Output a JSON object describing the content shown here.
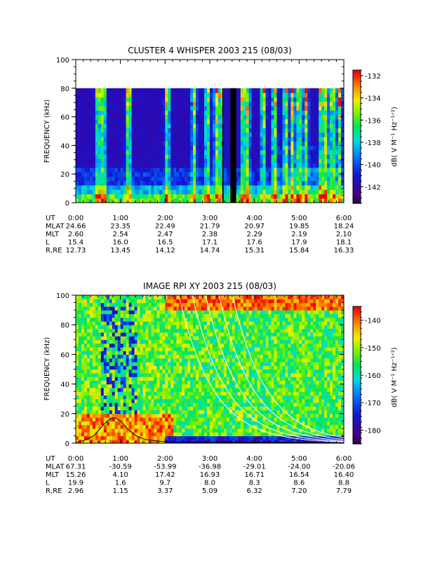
{
  "chart_data": [
    {
      "type": "heatmap",
      "title": "CLUSTER 4 WHISPER 2003 215 (08/03)",
      "ylabel": "FREQUENCY (kHz)",
      "ylim": [
        0,
        100
      ],
      "yticks": [
        "0",
        "20",
        "40",
        "60",
        "80",
        "100"
      ],
      "data_top_khz": 80,
      "colorbar": {
        "label": "dB( V M⁻¹ Hz⁻¹ᐟ²)",
        "ticks": [
          "-132",
          "-134",
          "-136",
          "-138",
          "-140",
          "-142"
        ],
        "range": [
          -143.5,
          -131.5
        ]
      },
      "data_gaps_hours": [
        [
          3.28,
          3.31
        ],
        [
          3.46,
          3.59
        ]
      ],
      "ephemeris": {
        "labels": [
          "UT",
          "MLAT",
          "MLT",
          "L",
          "R,RE"
        ],
        "columns": [
          [
            "0:00",
            "24.66",
            "2.60",
            "15.4",
            "12.73"
          ],
          [
            "1:00",
            "23.35",
            "2.54",
            "16.0",
            "13.45"
          ],
          [
            "2:00",
            "22.49",
            "2.47",
            "16.5",
            "14.12"
          ],
          [
            "3:00",
            "21.79",
            "2.38",
            "17.1",
            "14.74"
          ],
          [
            "4:00",
            "20.97",
            "2.29",
            "17.6",
            "15.31"
          ],
          [
            "5:00",
            "19.85",
            "2.19",
            "17.9",
            "15.84"
          ],
          [
            "6:00",
            "18.24",
            "2.10",
            "18.1",
            "16.33"
          ]
        ]
      }
    },
    {
      "type": "heatmap",
      "title": "IMAGE RPI XY 2003 215 (08/03)",
      "ylabel": "FREQUENCY (kHz)",
      "ylim": [
        0,
        100
      ],
      "yticks": [
        "0",
        "20",
        "40",
        "60",
        "80",
        "100"
      ],
      "colorbar": {
        "label": "dB( V M⁻¹ Hz⁻¹ᐟ²)",
        "ticks": [
          "-140",
          "-150",
          "-160",
          "-170",
          "-180"
        ],
        "range": [
          -185,
          -135
        ]
      },
      "plasma_frequency_curve": {
        "x_hours": [
          0.0,
          0.2,
          0.4,
          0.55,
          0.7,
          0.8,
          0.9,
          1.0,
          1.15,
          1.35,
          1.55,
          1.8,
          2.0,
          2.5,
          3.0,
          4.0,
          5.0,
          6.0
        ],
        "y_khz": [
          0.5,
          2,
          5,
          10,
          15,
          17,
          17,
          15,
          10,
          5,
          2.5,
          1.5,
          1,
          0.8,
          0.7,
          0.6,
          0.5,
          0.4
        ]
      },
      "gyro_harmonic_curves_hours_offset": [
        2.05,
        2.35,
        2.65,
        2.95,
        3.25
      ],
      "ephemeris": {
        "labels": [
          "UT",
          "MLAT",
          "MLT",
          "L",
          "R,RE"
        ],
        "columns": [
          [
            "0:00",
            "67.31",
            "15.26",
            "19.9",
            "2.96"
          ],
          [
            "1:00",
            "-30.59",
            "4.10",
            "1.6",
            "1.15"
          ],
          [
            "2:00",
            "-53.99",
            "17.42",
            "9.7",
            "3.37"
          ],
          [
            "3:00",
            "-36.98",
            "16.93",
            "8.0",
            "5.09"
          ],
          [
            "4:00",
            "-29.01",
            "16.71",
            "8.3",
            "6.32"
          ],
          [
            "5:00",
            "-24.00",
            "16.54",
            "8.6",
            "7.20"
          ],
          [
            "6:00",
            "-20.06",
            "16.40",
            "8.8",
            "7.79"
          ]
        ]
      }
    }
  ]
}
